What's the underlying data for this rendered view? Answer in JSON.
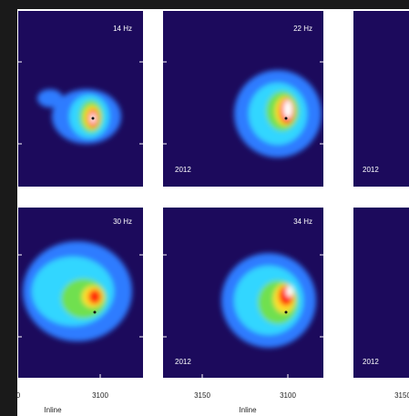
{
  "panels": [
    {
      "freq": "14 Hz"
    },
    {
      "freq": "22 Hz",
      "year": "2012"
    },
    {
      "year": "2012"
    },
    {
      "freq": "30 Hz"
    },
    {
      "freq": "34 Hz",
      "year": "2012"
    },
    {
      "year": "2012"
    }
  ],
  "x_tick_labels": [
    "0",
    "3100",
    "3150",
    "3100",
    "3150"
  ],
  "x_axis_labels": [
    "Inline",
    "Inline"
  ]
}
